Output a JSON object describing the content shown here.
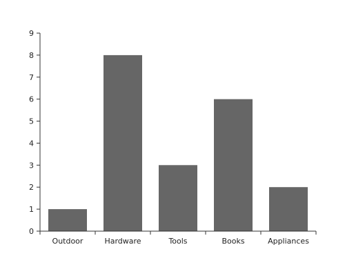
{
  "chart_data": {
    "type": "bar",
    "categories": [
      "Outdoor",
      "Hardware",
      "Tools",
      "Books",
      "Appliances"
    ],
    "values": [
      1,
      8,
      3,
      6,
      2
    ],
    "title": "",
    "xlabel": "",
    "ylabel": "",
    "ylim": [
      0,
      9
    ],
    "yticks": [
      0,
      1,
      2,
      3,
      4,
      5,
      6,
      7,
      8,
      9
    ],
    "grid": false,
    "legend": "none",
    "bar_color": "#666666",
    "axis_color": "#333333"
  }
}
